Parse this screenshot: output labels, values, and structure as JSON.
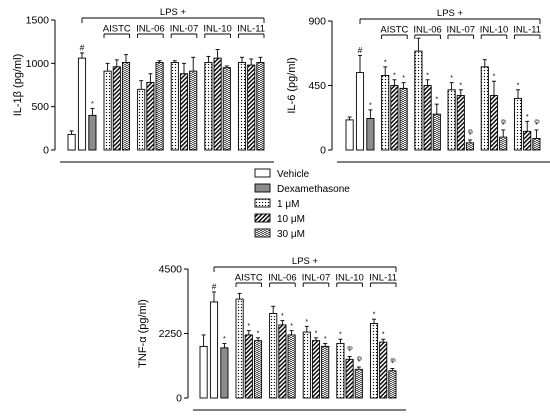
{
  "chart_data": [
    {
      "type": "bar",
      "ylabel": "IL-1β (pg/ml)",
      "ylim": [
        0,
        1500
      ],
      "yticks": [
        "0",
        "500",
        "1000",
        "1500"
      ],
      "lps_label": "LPS +",
      "controls": [
        {
          "series": "Vehicle",
          "value": 180,
          "error": 40,
          "mark": ""
        },
        {
          "series": "Vehicle",
          "value": 1060,
          "error": 60,
          "mark": "#"
        },
        {
          "series": "Dexamethasone",
          "value": 400,
          "error": 80,
          "mark": "*"
        }
      ],
      "groups": [
        {
          "label": "AISTC",
          "bars": [
            {
              "series": "1 μM",
              "value": 910,
              "error": 90,
              "mark": ""
            },
            {
              "series": "10 μM",
              "value": 960,
              "error": 80,
              "mark": ""
            },
            {
              "series": "30 μM",
              "value": 1010,
              "error": 90,
              "mark": ""
            }
          ]
        },
        {
          "label": "INL-06",
          "bars": [
            {
              "series": "1 μM",
              "value": 700,
              "error": 100,
              "mark": ""
            },
            {
              "series": "10 μM",
              "value": 780,
              "error": 100,
              "mark": ""
            },
            {
              "series": "30 μM",
              "value": 1010,
              "error": 20,
              "mark": ""
            }
          ]
        },
        {
          "label": "INL-07",
          "bars": [
            {
              "series": "1 μM",
              "value": 1010,
              "error": 20,
              "mark": ""
            },
            {
              "series": "10 μM",
              "value": 880,
              "error": 120,
              "mark": ""
            },
            {
              "series": "30 μM",
              "value": 910,
              "error": 160,
              "mark": ""
            }
          ]
        },
        {
          "label": "INL-10",
          "bars": [
            {
              "series": "1 μM",
              "value": 1010,
              "error": 70,
              "mark": ""
            },
            {
              "series": "10 μM",
              "value": 1060,
              "error": 100,
              "mark": ""
            },
            {
              "series": "30 μM",
              "value": 950,
              "error": 20,
              "mark": ""
            }
          ]
        },
        {
          "label": "INL-11",
          "bars": [
            {
              "series": "1 μM",
              "value": 1010,
              "error": 60,
              "mark": ""
            },
            {
              "series": "10 μM",
              "value": 980,
              "error": 70,
              "mark": ""
            },
            {
              "series": "30 μM",
              "value": 1010,
              "error": 60,
              "mark": ""
            }
          ]
        }
      ]
    },
    {
      "type": "bar",
      "ylabel": "IL-6 (pg/ml)",
      "ylim": [
        0,
        900
      ],
      "yticks": [
        "0",
        "450",
        "900"
      ],
      "lps_label": "LPS +",
      "controls": [
        {
          "series": "Vehicle",
          "value": 210,
          "error": 20,
          "mark": ""
        },
        {
          "series": "Vehicle",
          "value": 540,
          "error": 120,
          "mark": "#"
        },
        {
          "series": "Dexamethasone",
          "value": 220,
          "error": 60,
          "mark": "*"
        }
      ],
      "groups": [
        {
          "label": "AISTC",
          "bars": [
            {
              "series": "1 μM",
              "value": 520,
              "error": 60,
              "mark": "*"
            },
            {
              "series": "10 μM",
              "value": 450,
              "error": 40,
              "mark": "*"
            },
            {
              "series": "30 μM",
              "value": 430,
              "error": 40,
              "mark": "*"
            }
          ]
        },
        {
          "label": "INL-06",
          "bars": [
            {
              "series": "1 μM",
              "value": 690,
              "error": 90,
              "mark": ""
            },
            {
              "series": "10 μM",
              "value": 450,
              "error": 40,
              "mark": "*"
            },
            {
              "series": "30 μM",
              "value": 250,
              "error": 70,
              "mark": "*"
            }
          ]
        },
        {
          "label": "INL-07",
          "bars": [
            {
              "series": "1 μM",
              "value": 420,
              "error": 50,
              "mark": "*"
            },
            {
              "series": "10 μM",
              "value": 380,
              "error": 40,
              "mark": "*"
            },
            {
              "series": "30 μM",
              "value": 50,
              "error": 20,
              "mark": "*@"
            }
          ]
        },
        {
          "label": "INL-10",
          "bars": [
            {
              "series": "1 μM",
              "value": 580,
              "error": 50,
              "mark": ""
            },
            {
              "series": "10 μM",
              "value": 380,
              "error": 100,
              "mark": "*"
            },
            {
              "series": "30 μM",
              "value": 90,
              "error": 50,
              "mark": "*@"
            }
          ]
        },
        {
          "label": "INL-11",
          "bars": [
            {
              "series": "1 μM",
              "value": 360,
              "error": 60,
              "mark": "*"
            },
            {
              "series": "10 μM",
              "value": 130,
              "error": 70,
              "mark": "*"
            },
            {
              "series": "30 μM",
              "value": 80,
              "error": 60,
              "mark": "*@"
            }
          ]
        }
      ]
    },
    {
      "type": "bar",
      "ylabel": "TNF-α (pg/ml)",
      "ylim": [
        0,
        4500
      ],
      "yticks": [
        "0",
        "2250",
        "4500"
      ],
      "lps_label": "LPS +",
      "controls": [
        {
          "series": "Vehicle",
          "value": 1800,
          "error": 400,
          "mark": ""
        },
        {
          "series": "Vehicle",
          "value": 3350,
          "error": 350,
          "mark": "#"
        },
        {
          "series": "Dexamethasone",
          "value": 1750,
          "error": 150,
          "mark": "*"
        }
      ],
      "groups": [
        {
          "label": "AISTC",
          "bars": [
            {
              "series": "1 μM",
              "value": 3450,
              "error": 200,
              "mark": ""
            },
            {
              "series": "10 μM",
              "value": 2200,
              "error": 150,
              "mark": "*"
            },
            {
              "series": "30 μM",
              "value": 2000,
              "error": 100,
              "mark": "*"
            }
          ]
        },
        {
          "label": "INL-06",
          "bars": [
            {
              "series": "1 μM",
              "value": 2950,
              "error": 250,
              "mark": ""
            },
            {
              "series": "10 μM",
              "value": 2550,
              "error": 150,
              "mark": "*"
            },
            {
              "series": "30 μM",
              "value": 2200,
              "error": 150,
              "mark": "*"
            }
          ]
        },
        {
          "label": "INL-07",
          "bars": [
            {
              "series": "1 μM",
              "value": 2300,
              "error": 200,
              "mark": "*"
            },
            {
              "series": "10 μM",
              "value": 2000,
              "error": 100,
              "mark": "*"
            },
            {
              "series": "30 μM",
              "value": 1800,
              "error": 100,
              "mark": "*"
            }
          ]
        },
        {
          "label": "INL-10",
          "bars": [
            {
              "series": "1 μM",
              "value": 1900,
              "error": 150,
              "mark": "*"
            },
            {
              "series": "10 μM",
              "value": 1350,
              "error": 100,
              "mark": "*@"
            },
            {
              "series": "30 μM",
              "value": 1000,
              "error": 80,
              "mark": "*@"
            }
          ]
        },
        {
          "label": "INL-11",
          "bars": [
            {
              "series": "1 μM",
              "value": 2600,
              "error": 150,
              "mark": "*"
            },
            {
              "series": "10 μM",
              "value": 1950,
              "error": 100,
              "mark": "*"
            },
            {
              "series": "30 μM",
              "value": 950,
              "error": 80,
              "mark": "*@"
            }
          ]
        }
      ]
    }
  ],
  "legend": [
    {
      "label": "Vehicle",
      "pattern": "white"
    },
    {
      "label": "Dexamethasone",
      "pattern": "gray"
    },
    {
      "label": "1 μM",
      "pattern": "dots"
    },
    {
      "label": "10 μM",
      "pattern": "hatch"
    },
    {
      "label": "30 μM",
      "pattern": "wave"
    }
  ],
  "colors": {
    "bar_stroke": "#000000",
    "dexamethasone_fill": "#8c8c8c",
    "background": "#ffffff"
  }
}
